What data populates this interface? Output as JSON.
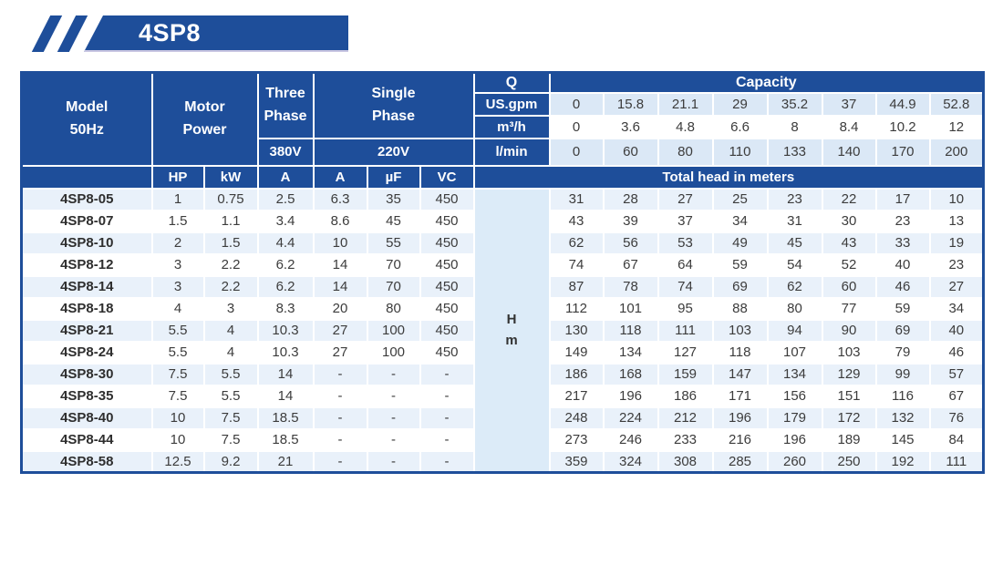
{
  "banner": {
    "title": "4SP8"
  },
  "colors": {
    "primary_blue": "#1e4e9a",
    "capacity_stripe": "#dbe8f6",
    "row_stripe": "#e9f1fa",
    "h_cell": "#dcebf8"
  },
  "table": {
    "header": {
      "model_line1": "Model",
      "model_line2": "50Hz",
      "motor_line1": "Motor",
      "motor_line2": "Power",
      "three_line1": "Three",
      "three_line2": "Phase",
      "single_line1": "Single",
      "single_line2": "Phase",
      "v380": "380V",
      "v220": "220V",
      "q": "Q",
      "capacity": "Capacity",
      "us_gpm": "US.gpm",
      "m3_h": "m³/h",
      "l_min": "l/min",
      "hp": "HP",
      "kw": "kW",
      "a380": "A",
      "a220": "A",
      "uf": "µF",
      "vc": "VC",
      "total_head": "Total head in meters",
      "h_line1": "H",
      "h_line2": "m"
    },
    "capacity_rows": {
      "us_gpm": [
        "0",
        "15.8",
        "21.1",
        "29",
        "35.2",
        "37",
        "44.9",
        "52.8"
      ],
      "m3_h": [
        "0",
        "3.6",
        "4.8",
        "6.6",
        "8",
        "8.4",
        "10.2",
        "12"
      ],
      "l_min": [
        "0",
        "60",
        "80",
        "110",
        "133",
        "140",
        "170",
        "200"
      ]
    },
    "rows": [
      {
        "model": "4SP8-05",
        "hp": "1",
        "kw": "0.75",
        "a380": "2.5",
        "a220": "6.3",
        "uf": "35",
        "vc": "450",
        "head": [
          "31",
          "28",
          "27",
          "25",
          "23",
          "22",
          "17",
          "10"
        ]
      },
      {
        "model": "4SP8-07",
        "hp": "1.5",
        "kw": "1.1",
        "a380": "3.4",
        "a220": "8.6",
        "uf": "45",
        "vc": "450",
        "head": [
          "43",
          "39",
          "37",
          "34",
          "31",
          "30",
          "23",
          "13"
        ]
      },
      {
        "model": "4SP8-10",
        "hp": "2",
        "kw": "1.5",
        "a380": "4.4",
        "a220": "10",
        "uf": "55",
        "vc": "450",
        "head": [
          "62",
          "56",
          "53",
          "49",
          "45",
          "43",
          "33",
          "19"
        ]
      },
      {
        "model": "4SP8-12",
        "hp": "3",
        "kw": "2.2",
        "a380": "6.2",
        "a220": "14",
        "uf": "70",
        "vc": "450",
        "head": [
          "74",
          "67",
          "64",
          "59",
          "54",
          "52",
          "40",
          "23"
        ]
      },
      {
        "model": "4SP8-14",
        "hp": "3",
        "kw": "2.2",
        "a380": "6.2",
        "a220": "14",
        "uf": "70",
        "vc": "450",
        "head": [
          "87",
          "78",
          "74",
          "69",
          "62",
          "60",
          "46",
          "27"
        ]
      },
      {
        "model": "4SP8-18",
        "hp": "4",
        "kw": "3",
        "a380": "8.3",
        "a220": "20",
        "uf": "80",
        "vc": "450",
        "head": [
          "112",
          "101",
          "95",
          "88",
          "80",
          "77",
          "59",
          "34"
        ]
      },
      {
        "model": "4SP8-21",
        "hp": "5.5",
        "kw": "4",
        "a380": "10.3",
        "a220": "27",
        "uf": "100",
        "vc": "450",
        "head": [
          "130",
          "118",
          "111",
          "103",
          "94",
          "90",
          "69",
          "40"
        ]
      },
      {
        "model": "4SP8-24",
        "hp": "5.5",
        "kw": "4",
        "a380": "10.3",
        "a220": "27",
        "uf": "100",
        "vc": "450",
        "head": [
          "149",
          "134",
          "127",
          "118",
          "107",
          "103",
          "79",
          "46"
        ]
      },
      {
        "model": "4SP8-30",
        "hp": "7.5",
        "kw": "5.5",
        "a380": "14",
        "a220": "-",
        "uf": "-",
        "vc": "-",
        "head": [
          "186",
          "168",
          "159",
          "147",
          "134",
          "129",
          "99",
          "57"
        ]
      },
      {
        "model": "4SP8-35",
        "hp": "7.5",
        "kw": "5.5",
        "a380": "14",
        "a220": "-",
        "uf": "-",
        "vc": "-",
        "head": [
          "217",
          "196",
          "186",
          "171",
          "156",
          "151",
          "116",
          "67"
        ]
      },
      {
        "model": "4SP8-40",
        "hp": "10",
        "kw": "7.5",
        "a380": "18.5",
        "a220": "-",
        "uf": "-",
        "vc": "-",
        "head": [
          "248",
          "224",
          "212",
          "196",
          "179",
          "172",
          "132",
          "76"
        ]
      },
      {
        "model": "4SP8-44",
        "hp": "10",
        "kw": "7.5",
        "a380": "18.5",
        "a220": "-",
        "uf": "-",
        "vc": "-",
        "head": [
          "273",
          "246",
          "233",
          "216",
          "196",
          "189",
          "145",
          "84"
        ]
      },
      {
        "model": "4SP8-58",
        "hp": "12.5",
        "kw": "9.2",
        "a380": "21",
        "a220": "-",
        "uf": "-",
        "vc": "-",
        "head": [
          "359",
          "324",
          "308",
          "285",
          "260",
          "250",
          "192",
          "111"
        ]
      }
    ]
  }
}
